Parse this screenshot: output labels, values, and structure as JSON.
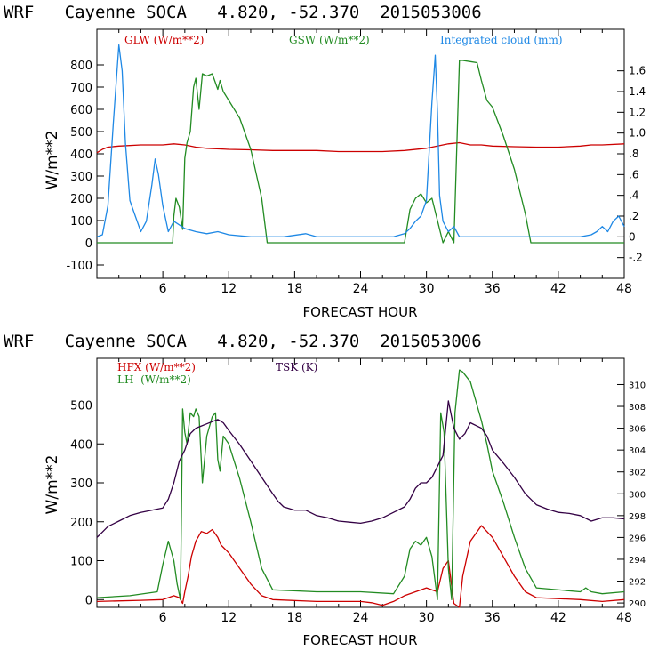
{
  "colors": {
    "glw": "#cc0000",
    "gsw": "#228B22",
    "cloud": "#1E88E5",
    "hfx": "#cc0000",
    "lh": "#228B22",
    "tsk": "#330044",
    "axis": "#000000"
  },
  "chart_data": [
    {
      "type": "line",
      "title": "WRF   Cayenne SOCA   4.820, -52.370  2015053006",
      "xlabel": "FORECAST HOUR",
      "ylabel": "W/m**2",
      "xlim": [
        0,
        48
      ],
      "ylim": [
        -160,
        960
      ],
      "y2lim": [
        -0.4,
        2.0
      ],
      "xticks": [
        6,
        12,
        18,
        24,
        30,
        36,
        42,
        48
      ],
      "xtick_labels": [
        "6",
        "12",
        "18",
        "24",
        "30",
        "36",
        "42",
        "48"
      ],
      "yticks": [
        -100,
        0,
        100,
        200,
        300,
        400,
        500,
        600,
        700,
        800
      ],
      "ytick_labels": [
        "-100",
        "0",
        "100",
        "200",
        "300",
        "400",
        "500",
        "600",
        "700",
        "800"
      ],
      "y2ticks": [
        -0.2,
        0,
        0.2,
        0.4,
        0.6,
        0.8,
        1.0,
        1.2,
        1.4,
        1.6
      ],
      "y2tick_labels": [
        "-.2",
        "0",
        ".2",
        ".4",
        ".6",
        ".8",
        "1.0",
        "1.2",
        "1.4",
        "1.6"
      ],
      "legend": [
        "GLW (W/m**2)",
        "GSW (W/m**2)",
        "Integrated cloud (mm)"
      ],
      "series": [
        {
          "name": "GLW (W/m**2)",
          "axis": "left",
          "x": [
            0,
            0.5,
            1,
            2,
            4,
            6,
            7,
            8,
            9,
            10,
            12,
            14,
            16,
            18,
            20,
            22,
            24,
            26,
            28,
            30,
            31,
            32,
            33,
            34,
            35,
            36,
            38,
            40,
            42,
            44,
            45,
            46,
            48
          ],
          "y": [
            405,
            420,
            430,
            435,
            440,
            440,
            445,
            440,
            430,
            425,
            420,
            418,
            415,
            415,
            415,
            410,
            410,
            410,
            415,
            425,
            435,
            445,
            450,
            440,
            440,
            435,
            432,
            430,
            430,
            435,
            440,
            440,
            445
          ]
        },
        {
          "name": "GSW (W/m**2)",
          "axis": "left",
          "x": [
            0,
            6.9,
            7.0,
            7.2,
            7.5,
            7.8,
            8.0,
            8.2,
            8.5,
            8.8,
            9.0,
            9.3,
            9.6,
            10.0,
            10.5,
            11.0,
            11.2,
            11.5,
            12.0,
            13.0,
            14.0,
            15.0,
            15.5,
            28.0,
            28.5,
            29.0,
            29.5,
            30.0,
            30.5,
            31.0,
            31.5,
            32.0,
            32.5,
            33.0,
            33.3,
            34.0,
            34.6,
            35.0,
            35.5,
            36.0,
            37.0,
            38.0,
            39.0,
            39.5,
            48
          ],
          "y": [
            0,
            0,
            120,
            200,
            160,
            60,
            380,
            450,
            500,
            700,
            740,
            600,
            760,
            750,
            760,
            690,
            730,
            680,
            640,
            560,
            420,
            200,
            0,
            0,
            150,
            200,
            220,
            180,
            200,
            100,
            0,
            50,
            0,
            820,
            820,
            815,
            810,
            730,
            640,
            610,
            480,
            330,
            130,
            0,
            0
          ]
        },
        {
          "name": "Integrated cloud (mm)",
          "axis": "right",
          "x": [
            0,
            0.5,
            1.0,
            1.5,
            2.0,
            2.3,
            2.6,
            3.0,
            3.5,
            4.0,
            4.5,
            5.0,
            5.3,
            5.6,
            6.0,
            6.5,
            7.0,
            8.0,
            9.0,
            10.0,
            11.0,
            12.0,
            14.0,
            17.0,
            19.0,
            20.0,
            24.0,
            27.0,
            28.0,
            28.5,
            29.0,
            29.5,
            30.0,
            30.5,
            30.8,
            31.0,
            31.2,
            31.5,
            32.0,
            32.5,
            33.0,
            36.0,
            40.0,
            44.0,
            45.0,
            45.5,
            46.0,
            46.5,
            47.0,
            47.5,
            48.0
          ],
          "y": [
            0,
            0.02,
            0.3,
            1.1,
            1.85,
            1.6,
            0.9,
            0.35,
            0.2,
            0.05,
            0.15,
            0.5,
            0.75,
            0.6,
            0.3,
            0.05,
            0.15,
            0.08,
            0.05,
            0.03,
            0.05,
            0.02,
            0.0,
            0.0,
            0.03,
            0.0,
            0.0,
            0.0,
            0.03,
            0.08,
            0.15,
            0.2,
            0.35,
            1.3,
            1.75,
            1.2,
            0.4,
            0.15,
            0.05,
            0.1,
            0.0,
            0.0,
            0.0,
            0.0,
            0.02,
            0.05,
            0.1,
            0.05,
            0.15,
            0.2,
            0.1
          ]
        }
      ]
    },
    {
      "type": "line",
      "title": "WRF   Cayenne SOCA   4.820, -52.370  2015053006",
      "xlabel": "FORECAST HOUR",
      "ylabel": "W/m**2",
      "xlim": [
        0,
        48
      ],
      "ylim": [
        -20,
        620
      ],
      "y2lim": [
        289.6,
        312.4
      ],
      "xticks": [
        6,
        12,
        18,
        24,
        30,
        36,
        42,
        48
      ],
      "xtick_labels": [
        "6",
        "12",
        "18",
        "24",
        "30",
        "36",
        "42",
        "48"
      ],
      "yticks": [
        0,
        100,
        200,
        300,
        400,
        500
      ],
      "ytick_labels": [
        "0",
        "100",
        "200",
        "300",
        "400",
        "500"
      ],
      "y2ticks": [
        290,
        292,
        294,
        296,
        298,
        300,
        302,
        304,
        306,
        308,
        310
      ],
      "y2tick_labels": [
        "290",
        "292",
        "294",
        "296",
        "298",
        "300",
        "302",
        "304",
        "306",
        "308",
        "310"
      ],
      "legend": [
        "HFX (W/m**2)",
        "LH  (W/m**2)",
        "TSK (K)"
      ],
      "series": [
        {
          "name": "HFX (W/m**2)",
          "axis": "left",
          "x": [
            0,
            4,
            6,
            6.5,
            7.0,
            7.5,
            7.8,
            8.0,
            8.3,
            8.6,
            9.0,
            9.5,
            10.0,
            10.5,
            11.0,
            11.3,
            12.0,
            13.0,
            14.0,
            15.0,
            16.0,
            20.0,
            24.0,
            25.0,
            26.0,
            27.0,
            28.0,
            29.0,
            30.0,
            31.0,
            31.5,
            32.0,
            32.5,
            33.0,
            33.3,
            34.0,
            35.0,
            36.0,
            37.0,
            38.0,
            39.0,
            40.0,
            44.0,
            46.0,
            48.0
          ],
          "y": [
            -5,
            -2,
            0,
            5,
            10,
            5,
            -10,
            20,
            60,
            110,
            150,
            175,
            170,
            180,
            160,
            140,
            120,
            80,
            40,
            10,
            0,
            -5,
            -5,
            -8,
            -15,
            -5,
            10,
            20,
            30,
            20,
            80,
            100,
            -10,
            -20,
            60,
            150,
            190,
            160,
            110,
            60,
            20,
            5,
            0,
            -5,
            0
          ]
        },
        {
          "name": "LH  (W/m**2)",
          "axis": "left",
          "x": [
            0,
            3,
            5.5,
            6.0,
            6.5,
            7.0,
            7.3,
            7.6,
            7.8,
            8.0,
            8.2,
            8.5,
            8.8,
            9.0,
            9.3,
            9.6,
            10.0,
            10.5,
            10.8,
            11.0,
            11.2,
            11.5,
            12.0,
            13.0,
            14.0,
            15.0,
            16.0,
            20.0,
            24.0,
            27.0,
            28.0,
            28.5,
            29.0,
            29.5,
            30.0,
            30.5,
            31.0,
            31.3,
            31.6,
            32.0,
            32.3,
            32.6,
            33.0,
            33.3,
            34.0,
            35.0,
            35.5,
            36.0,
            37.0,
            38.0,
            39.0,
            40.0,
            44.0,
            44.5,
            45.0,
            46.0,
            48.0
          ],
          "y": [
            5,
            10,
            20,
            90,
            150,
            100,
            40,
            0,
            490,
            430,
            400,
            480,
            470,
            490,
            470,
            300,
            420,
            470,
            480,
            360,
            330,
            420,
            400,
            310,
            200,
            80,
            25,
            20,
            20,
            15,
            60,
            130,
            150,
            140,
            160,
            110,
            0,
            480,
            430,
            80,
            0,
            480,
            590,
            585,
            560,
            460,
            400,
            330,
            250,
            160,
            80,
            30,
            20,
            30,
            20,
            15,
            20
          ]
        },
        {
          "name": "TSK (K)",
          "axis": "right",
          "x": [
            0,
            0.5,
            1.0,
            2.0,
            3.0,
            4.0,
            5.0,
            6.0,
            6.5,
            7.0,
            7.5,
            8.0,
            8.5,
            9.0,
            9.5,
            10.0,
            10.5,
            11.0,
            11.5,
            12.0,
            13.0,
            14.0,
            15.0,
            16.0,
            16.5,
            17.0,
            18.0,
            19.0,
            20.0,
            21.0,
            22.0,
            23.0,
            24.0,
            25.0,
            26.0,
            27.0,
            28.0,
            28.5,
            29.0,
            29.5,
            30.0,
            30.5,
            31.0,
            31.5,
            32.0,
            32.5,
            33.0,
            33.5,
            34.0,
            35.0,
            35.5,
            36.0,
            37.0,
            38.0,
            39.0,
            40.0,
            41.0,
            42.0,
            43.0,
            44.0,
            45.0,
            46.0,
            47.0,
            48.0
          ],
          "y": [
            296.0,
            296.5,
            297.0,
            297.5,
            298.0,
            298.3,
            298.5,
            298.7,
            299.5,
            301.0,
            303.0,
            304.0,
            305.5,
            306.0,
            306.2,
            306.4,
            306.6,
            306.8,
            306.5,
            305.8,
            304.5,
            303.0,
            301.5,
            300.0,
            299.3,
            298.8,
            298.5,
            298.5,
            298.0,
            297.8,
            297.5,
            297.4,
            297.3,
            297.5,
            297.8,
            298.3,
            298.8,
            299.5,
            300.5,
            301.0,
            301.0,
            301.5,
            302.5,
            303.5,
            308.5,
            306.0,
            305.0,
            305.5,
            306.5,
            306.0,
            305.3,
            304.0,
            302.8,
            301.5,
            300.0,
            299.0,
            298.6,
            298.3,
            298.2,
            298.0,
            297.5,
            297.8,
            297.8,
            297.7
          ]
        }
      ]
    }
  ]
}
